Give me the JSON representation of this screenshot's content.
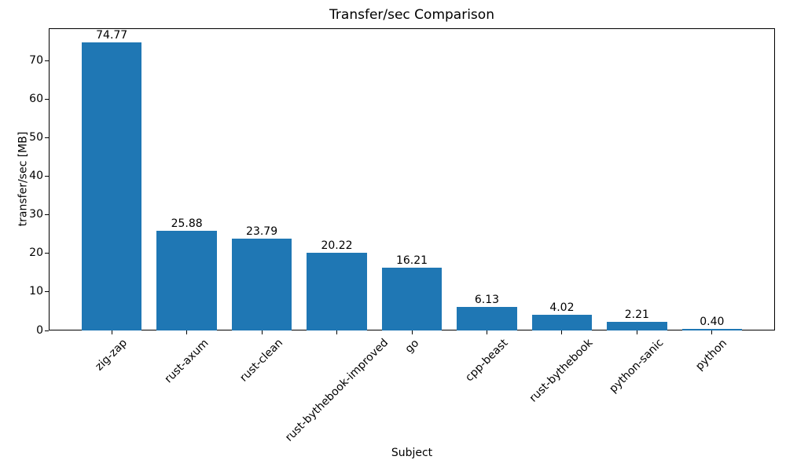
{
  "chart_data": {
    "type": "bar",
    "title": "Transfer/sec Comparison",
    "xlabel": "Subject",
    "ylabel": "transfer/sec [MB]",
    "categories": [
      "zig-zap",
      "rust-axum",
      "rust-clean",
      "rust-bythebook-improved",
      "go",
      "cpp-beast",
      "rust-bythebook",
      "python-sanic",
      "python"
    ],
    "values": [
      74.77,
      25.88,
      23.79,
      20.22,
      16.21,
      6.13,
      4.02,
      2.21,
      0.4
    ],
    "value_labels": [
      "74.77",
      "25.88",
      "23.79",
      "20.22",
      "16.21",
      "6.13",
      "4.02",
      "2.21",
      "0.40"
    ],
    "yticks": [
      0,
      10,
      20,
      30,
      40,
      50,
      60,
      70
    ],
    "ylim": [
      0,
      78.5
    ],
    "bar_color": "#1f77b4",
    "axis_color": "#000000",
    "text_color": "#000000",
    "grid": false,
    "legend": "none",
    "x_tick_rotation_deg": 45,
    "bar_relative_width": 0.8
  }
}
